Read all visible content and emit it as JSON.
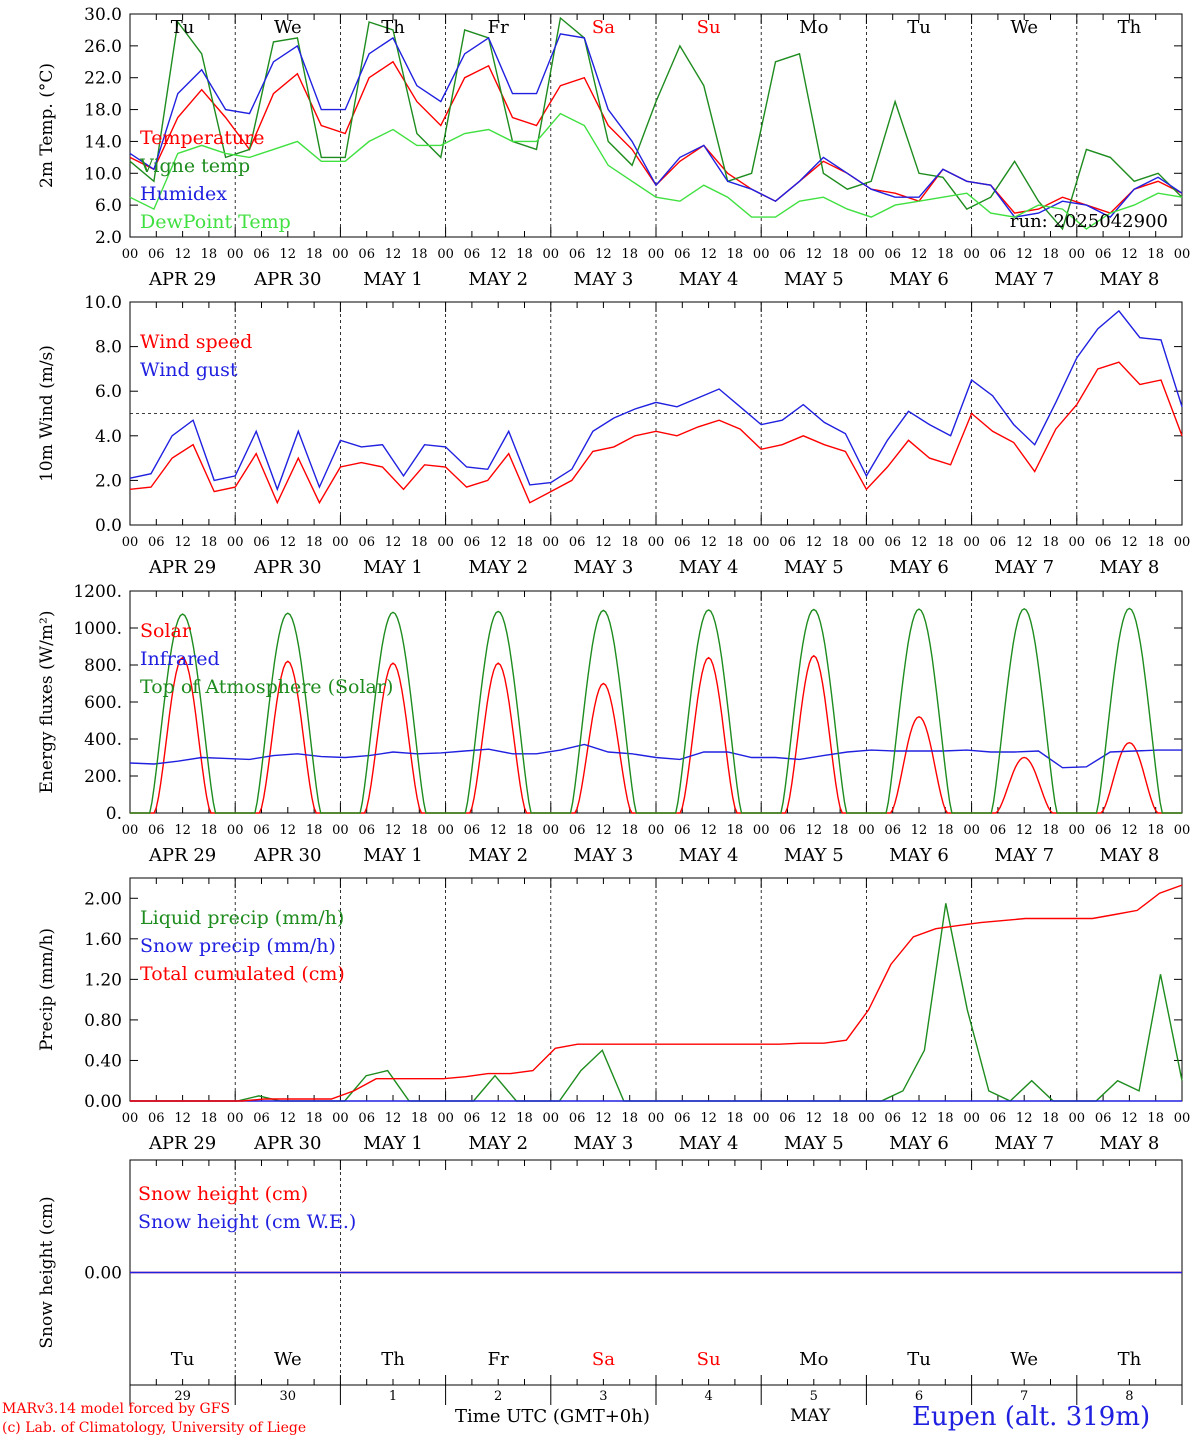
{
  "footer": {
    "credit_line1": "MARv3.14 model forced by GFS",
    "credit_line2": "(c) Lab. of Climatology, University of Liege",
    "time_axis_title": "Time UTC (GMT+0h)",
    "month_label": "MAY",
    "station": "Eupen (alt. 319m)"
  },
  "timeline": {
    "hour_ticks": [
      "00",
      "06",
      "12",
      "18"
    ],
    "date_labels": [
      "APR 29",
      "APR 30",
      "MAY 1",
      "MAY 2",
      "MAY 3",
      "MAY 4",
      "MAY 5",
      "MAY 6",
      "MAY 7",
      "MAY 8"
    ],
    "days": [
      {
        "dow": "Tu",
        "weekend": false,
        "day": "29"
      },
      {
        "dow": "We",
        "weekend": false,
        "day": "30"
      },
      {
        "dow": "Th",
        "weekend": false,
        "day": "1"
      },
      {
        "dow": "Fr",
        "weekend": false,
        "day": "2"
      },
      {
        "dow": "Sa",
        "weekend": true,
        "day": "3"
      },
      {
        "dow": "Su",
        "weekend": true,
        "day": "4"
      },
      {
        "dow": "Mo",
        "weekend": false,
        "day": "5"
      },
      {
        "dow": "Tu",
        "weekend": false,
        "day": "6"
      },
      {
        "dow": "We",
        "weekend": false,
        "day": "7"
      },
      {
        "dow": "Th",
        "weekend": false,
        "day": "8"
      }
    ]
  },
  "colors": {
    "red": "#ff0000",
    "green": "#1e8c1e",
    "blue": "#2020e0",
    "lightgreen": "#40e040",
    "weekend": "#ff0000"
  },
  "chart_data": [
    {
      "type": "line",
      "ylabel": "2m Temp. (°C)",
      "ylim": [
        2,
        30
      ],
      "yticks": [
        "2.0",
        "6.0",
        "10.0",
        "14.0",
        "18.0",
        "22.0",
        "26.0",
        "30.0"
      ],
      "annotation": "run: 2025042900",
      "x_step_hours": 6,
      "series": [
        {
          "name": "Temperature",
          "color": "red",
          "values": [
            12,
            10.5,
            17,
            20.5,
            17,
            13,
            20,
            22.5,
            16,
            15,
            22,
            24,
            19,
            16,
            22,
            23.5,
            17,
            16,
            21,
            22,
            16,
            13,
            8.5,
            11.5,
            13.5,
            10,
            8,
            6.5,
            9,
            11.5,
            10,
            8,
            7.5,
            6.5,
            10.5,
            9,
            8.5,
            5,
            5.5,
            7,
            6,
            5,
            8,
            9,
            7.5
          ]
        },
        {
          "name": "Vigne temp",
          "color": "green",
          "values": [
            11.5,
            9,
            29,
            25,
            12,
            13,
            26.5,
            27,
            12,
            12,
            29,
            28,
            15,
            12,
            28,
            27,
            14,
            13,
            29.5,
            27,
            14,
            11,
            19,
            26,
            21,
            9,
            10,
            24,
            25,
            10,
            8,
            9,
            19,
            10,
            9.5,
            5.5,
            7,
            11.5,
            6.5,
            3,
            13,
            12,
            9,
            10,
            7
          ]
        },
        {
          "name": "Humidex",
          "color": "blue",
          "values": [
            12.5,
            10.5,
            20,
            23,
            18,
            17.5,
            24,
            26,
            18,
            18,
            25,
            27,
            21,
            19,
            25,
            27,
            20,
            20,
            27.5,
            27,
            18,
            14,
            8.5,
            12,
            13.5,
            9,
            8,
            6.5,
            9,
            12,
            10,
            8,
            7,
            7,
            10.5,
            9,
            8.5,
            4.5,
            5,
            6.5,
            6,
            4.5,
            8,
            9.5,
            7.5
          ]
        },
        {
          "name": "DewPoint Temp",
          "color": "lightgreen",
          "values": [
            7,
            5.5,
            12.5,
            13.5,
            12.5,
            12,
            13,
            14,
            11.5,
            11.5,
            14,
            15.5,
            13.5,
            13.5,
            15,
            15.5,
            14,
            14,
            17.5,
            16,
            11,
            9,
            7,
            6.5,
            8.5,
            7,
            4.5,
            4.5,
            6.5,
            7,
            5.5,
            4.5,
            6,
            6.5,
            7,
            7.5,
            5,
            4.5,
            6,
            5.5,
            3,
            5,
            6,
            7.5,
            7
          ]
        }
      ]
    },
    {
      "type": "line",
      "ylabel": "10m Wind (m/s)",
      "ylim": [
        0,
        10
      ],
      "yticks": [
        "0.0",
        "2.0",
        "4.0",
        "6.0",
        "8.0",
        "10.0"
      ],
      "reference_line": 5,
      "x_step_hours": 6,
      "series": [
        {
          "name": "Wind speed",
          "color": "red",
          "values": [
            1.6,
            1.7,
            3.0,
            3.6,
            1.5,
            1.7,
            3.2,
            1.0,
            3.0,
            1.0,
            2.6,
            2.8,
            2.6,
            1.6,
            2.7,
            2.6,
            1.7,
            2.0,
            3.2,
            1.0,
            1.5,
            2.0,
            3.3,
            3.5,
            4.0,
            4.2,
            4.0,
            4.4,
            4.7,
            4.3,
            3.4,
            3.6,
            4.0,
            3.6,
            3.3,
            1.6,
            2.6,
            3.8,
            3.0,
            2.7,
            5.0,
            4.2,
            3.7,
            2.4,
            4.3,
            5.4,
            7.0,
            7.3,
            6.3,
            6.5,
            4.0
          ]
        },
        {
          "name": "Wind gust",
          "color": "blue",
          "values": [
            2.1,
            2.3,
            4.0,
            4.7,
            2.0,
            2.2,
            4.2,
            1.6,
            4.2,
            1.7,
            3.8,
            3.5,
            3.6,
            2.2,
            3.6,
            3.5,
            2.6,
            2.5,
            4.2,
            1.8,
            1.9,
            2.5,
            4.2,
            4.8,
            5.2,
            5.5,
            5.3,
            5.7,
            6.1,
            5.3,
            4.5,
            4.7,
            5.4,
            4.6,
            4.1,
            2.2,
            3.8,
            5.1,
            4.5,
            4.0,
            6.5,
            5.8,
            4.5,
            3.6,
            5.5,
            7.5,
            8.8,
            9.6,
            8.4,
            8.3,
            5.3
          ]
        }
      ]
    },
    {
      "type": "line",
      "ylabel": "Energy fluxes (W/m²)",
      "ylim": [
        0,
        1200
      ],
      "yticks": [
        "0.",
        "200.",
        "400.",
        "600.",
        "800.",
        "1000.",
        "1200."
      ],
      "series": [
        {
          "name": "Solar",
          "color": "red",
          "peaks": [
            840,
            820,
            810,
            810,
            700,
            840,
            850,
            520,
            300,
            380
          ]
        },
        {
          "name": "Infrared",
          "color": "blue",
          "x_step_hours": 6,
          "values": [
            270,
            265,
            280,
            300,
            295,
            290,
            310,
            320,
            305,
            300,
            310,
            330,
            320,
            325,
            335,
            345,
            320,
            320,
            340,
            370,
            330,
            320,
            300,
            290,
            330,
            330,
            300,
            300,
            290,
            310,
            330,
            340,
            335,
            335,
            335,
            340,
            330,
            330,
            335,
            245,
            250,
            330,
            335,
            340,
            340
          ]
        },
        {
          "name": "Top of Atmosphere (Solar)",
          "color": "green",
          "peaks": [
            1075,
            1080,
            1085,
            1090,
            1095,
            1098,
            1100,
            1102,
            1104,
            1106
          ]
        }
      ]
    },
    {
      "type": "line",
      "ylabel": "Precip (mm/h)",
      "ylim": [
        0,
        2.2
      ],
      "yticks": [
        "0.00",
        "0.40",
        "0.80",
        "1.20",
        "1.60",
        "2.00"
      ],
      "x_step_hours": 6,
      "series": [
        {
          "name": "Liquid precip (mm/h)",
          "color": "green",
          "values": [
            0,
            0,
            0,
            0,
            0,
            0,
            0.05,
            0,
            0,
            0,
            0,
            0.25,
            0.3,
            0,
            0,
            0,
            0,
            0.25,
            0,
            0,
            0,
            0.3,
            0.5,
            0,
            0,
            0,
            0,
            0,
            0,
            0,
            0,
            0,
            0,
            0,
            0,
            0,
            0.1,
            0.5,
            1.95,
            0.9,
            0.1,
            0,
            0.2,
            0,
            0,
            0,
            0.2,
            0.1,
            1.25,
            0.2
          ]
        },
        {
          "name": "Snow precip (mm/h)",
          "color": "blue",
          "values": [
            0,
            0,
            0,
            0,
            0,
            0,
            0,
            0,
            0,
            0,
            0,
            0,
            0,
            0,
            0,
            0,
            0,
            0,
            0,
            0,
            0,
            0,
            0,
            0,
            0,
            0,
            0,
            0,
            0,
            0,
            0,
            0,
            0,
            0,
            0,
            0,
            0,
            0,
            0,
            0,
            0,
            0,
            0,
            0,
            0,
            0,
            0,
            0,
            0,
            0
          ]
        },
        {
          "name": "Total cumulated (cm)",
          "color": "red",
          "values": [
            0,
            0,
            0,
            0,
            0,
            0,
            0.02,
            0.02,
            0.02,
            0.02,
            0.1,
            0.22,
            0.22,
            0.22,
            0.22,
            0.24,
            0.27,
            0.27,
            0.3,
            0.52,
            0.56,
            0.56,
            0.56,
            0.56,
            0.56,
            0.56,
            0.56,
            0.56,
            0.56,
            0.56,
            0.57,
            0.57,
            0.6,
            0.9,
            1.35,
            1.62,
            1.7,
            1.73,
            1.76,
            1.78,
            1.8,
            1.8,
            1.8,
            1.8,
            1.84,
            1.88,
            2.05,
            2.13
          ]
        }
      ]
    },
    {
      "type": "line",
      "ylabel": "Snow height (cm)",
      "yticks": [
        "0.00"
      ],
      "series": [
        {
          "name": "Snow height (cm)",
          "color": "red",
          "values": [
            0,
            0
          ]
        },
        {
          "name": "Snow height (cm W.E.)",
          "color": "blue",
          "values": [
            0,
            0
          ]
        }
      ]
    }
  ]
}
